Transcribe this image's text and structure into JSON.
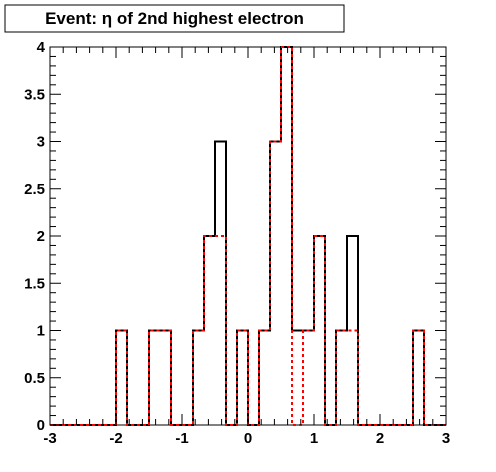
{
  "chart_data": {
    "type": "histogram",
    "title": "Event: η of 2nd highest electron",
    "xlabel": "",
    "ylabel": "",
    "xlim": [
      -3,
      3
    ],
    "ylim": [
      0,
      4
    ],
    "bin_width": 0.166667,
    "bin_edges_range": [
      -3,
      3
    ],
    "x_ticks": [
      "-3",
      "-2",
      "-1",
      "0",
      "1",
      "2",
      "3"
    ],
    "y_ticks": [
      "0",
      "0.5",
      "1",
      "1.5",
      "2",
      "2.5",
      "3",
      "3.5",
      "4"
    ],
    "x_tick_values": [
      -3,
      -2,
      -1,
      0,
      1,
      2,
      3
    ],
    "y_tick_values": [
      0,
      0.5,
      1,
      1.5,
      2,
      2.5,
      3,
      3.5,
      4
    ],
    "grid": false,
    "series": [
      {
        "style": "solid",
        "color": "#000000",
        "values": [
          0,
          0,
          0,
          0,
          0,
          0,
          1,
          0,
          0,
          1,
          1,
          0,
          0,
          1,
          2,
          3,
          0,
          1,
          0,
          1,
          3,
          4,
          1,
          1,
          2,
          0,
          1,
          2,
          0,
          0,
          0,
          0,
          0,
          1,
          0,
          0
        ]
      },
      {
        "style": "dashed",
        "color": "#ff0000",
        "values": [
          0,
          0,
          0,
          0,
          0,
          0,
          1,
          0,
          0,
          1,
          1,
          0,
          0,
          1,
          2,
          2,
          0,
          1,
          0,
          1,
          3,
          4,
          0,
          1,
          2,
          0,
          1,
          1,
          0,
          0,
          0,
          0,
          0,
          1,
          0,
          0
        ]
      }
    ]
  }
}
